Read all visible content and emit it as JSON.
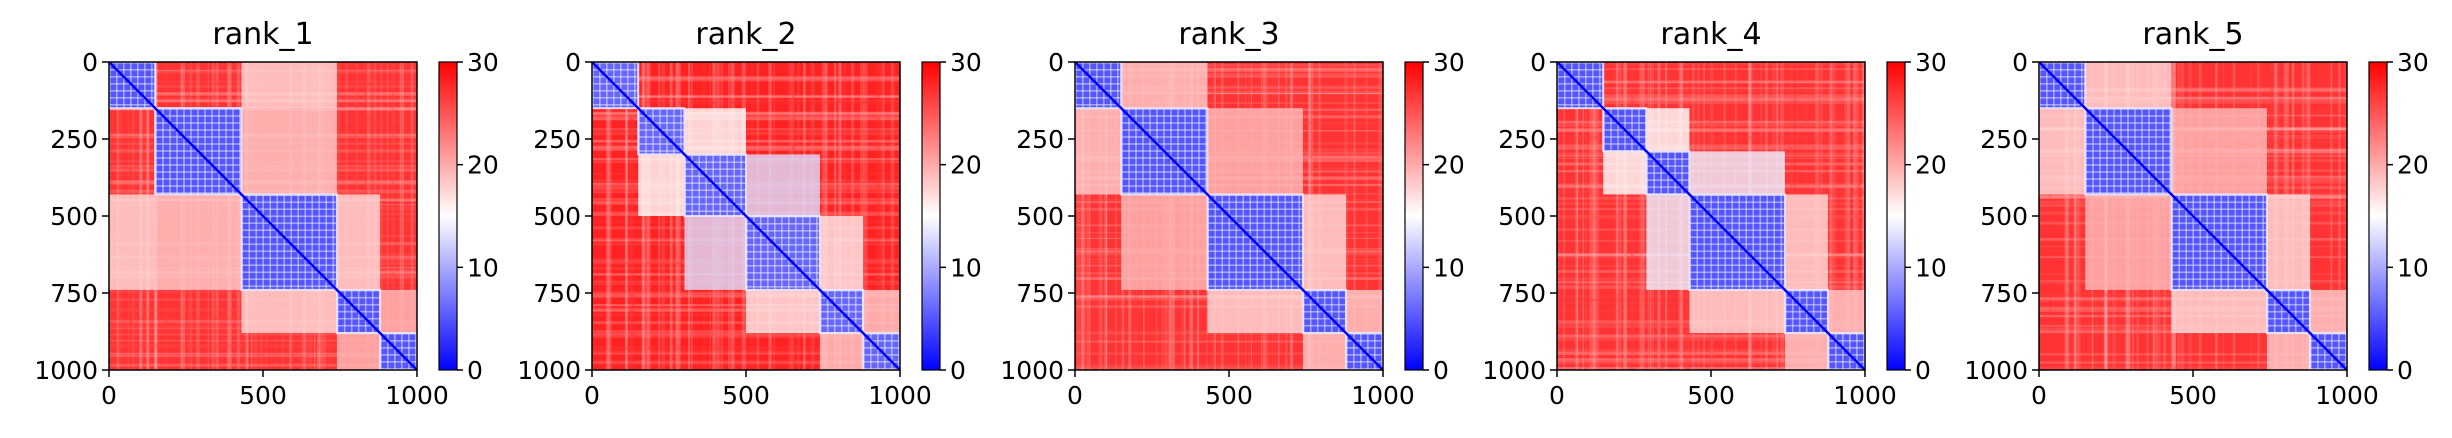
{
  "chart_data": [
    {
      "type": "heatmap",
      "title": "rank_1",
      "x_ticks": [
        0,
        500,
        1000
      ],
      "y_ticks": [
        0,
        250,
        500,
        750,
        1000
      ],
      "xlim": [
        0,
        1000
      ],
      "ylim": [
        1000,
        0
      ],
      "colorbar": {
        "min": 0,
        "max": 30,
        "ticks": [
          0,
          10,
          20,
          30
        ],
        "colors": [
          "#0000ff",
          "#ffffff",
          "#ff0000"
        ]
      },
      "blocks": [
        [
          0,
          150
        ],
        [
          150,
          430
        ],
        [
          430,
          740
        ],
        [
          740,
          880
        ],
        [
          880,
          1000
        ]
      ],
      "off_block_value": 27,
      "in_block_value": 5,
      "cross_blocks": [
        [
          0,
          2,
          17
        ],
        [
          1,
          2,
          18
        ],
        [
          2,
          3,
          17
        ],
        [
          3,
          4,
          19
        ]
      ]
    },
    {
      "type": "heatmap",
      "title": "rank_2",
      "x_ticks": [
        0,
        500,
        1000
      ],
      "y_ticks": [
        0,
        250,
        500,
        750,
        1000
      ],
      "xlim": [
        0,
        1000
      ],
      "ylim": [
        1000,
        0
      ],
      "colorbar": {
        "min": 0,
        "max": 30,
        "ticks": [
          0,
          10,
          20,
          30
        ],
        "colors": [
          "#0000ff",
          "#ffffff",
          "#ff0000"
        ]
      },
      "blocks": [
        [
          0,
          150
        ],
        [
          150,
          300
        ],
        [
          300,
          500
        ],
        [
          500,
          740
        ],
        [
          740,
          880
        ],
        [
          880,
          1000
        ]
      ],
      "off_block_value": 28,
      "in_block_value": 6,
      "cross_blocks": [
        [
          1,
          2,
          15
        ],
        [
          2,
          3,
          13
        ],
        [
          3,
          4,
          16
        ],
        [
          4,
          5,
          18
        ]
      ]
    },
    {
      "type": "heatmap",
      "title": "rank_3",
      "x_ticks": [
        0,
        500,
        1000
      ],
      "y_ticks": [
        0,
        250,
        500,
        750,
        1000
      ],
      "xlim": [
        0,
        1000
      ],
      "ylim": [
        1000,
        0
      ],
      "colorbar": {
        "min": 0,
        "max": 30,
        "ticks": [
          0,
          10,
          20,
          30
        ],
        "colors": [
          "#0000ff",
          "#ffffff",
          "#ff0000"
        ]
      },
      "blocks": [
        [
          0,
          150
        ],
        [
          150,
          430
        ],
        [
          430,
          740
        ],
        [
          740,
          880
        ],
        [
          880,
          1000
        ]
      ],
      "off_block_value": 27,
      "in_block_value": 5,
      "cross_blocks": [
        [
          0,
          1,
          18
        ],
        [
          1,
          2,
          19
        ],
        [
          2,
          3,
          17
        ],
        [
          3,
          4,
          18
        ]
      ]
    },
    {
      "type": "heatmap",
      "title": "rank_4",
      "x_ticks": [
        0,
        500,
        1000
      ],
      "y_ticks": [
        0,
        250,
        500,
        750,
        1000
      ],
      "xlim": [
        0,
        1000
      ],
      "ylim": [
        1000,
        0
      ],
      "colorbar": {
        "min": 0,
        "max": 30,
        "ticks": [
          0,
          10,
          20,
          30
        ],
        "colors": [
          "#0000ff",
          "#ffffff",
          "#ff0000"
        ]
      },
      "blocks": [
        [
          0,
          150
        ],
        [
          150,
          290
        ],
        [
          290,
          430
        ],
        [
          430,
          740
        ],
        [
          740,
          880
        ],
        [
          880,
          1000
        ]
      ],
      "off_block_value": 27,
      "in_block_value": 5,
      "cross_blocks": [
        [
          1,
          2,
          15
        ],
        [
          2,
          3,
          14
        ],
        [
          3,
          4,
          17
        ],
        [
          4,
          5,
          18
        ]
      ]
    },
    {
      "type": "heatmap",
      "title": "rank_5",
      "x_ticks": [
        0,
        500,
        1000
      ],
      "y_ticks": [
        0,
        250,
        500,
        750,
        1000
      ],
      "xlim": [
        0,
        1000
      ],
      "ylim": [
        1000,
        0
      ],
      "colorbar": {
        "min": 0,
        "max": 30,
        "ticks": [
          0,
          10,
          20,
          30
        ],
        "colors": [
          "#0000ff",
          "#ffffff",
          "#ff0000"
        ]
      },
      "blocks": [
        [
          0,
          150
        ],
        [
          150,
          430
        ],
        [
          430,
          740
        ],
        [
          740,
          880
        ],
        [
          880,
          1000
        ]
      ],
      "off_block_value": 27,
      "in_block_value": 5,
      "cross_blocks": [
        [
          0,
          1,
          17
        ],
        [
          1,
          2,
          19
        ],
        [
          2,
          3,
          17
        ],
        [
          3,
          4,
          18
        ]
      ]
    }
  ]
}
